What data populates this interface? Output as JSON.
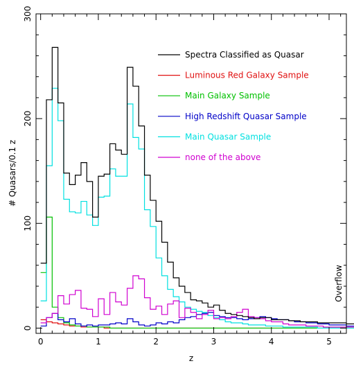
{
  "chart_data": {
    "type": "line",
    "title": "",
    "xlabel": "z",
    "ylabel": "# Quasars/0.1 z",
    "xlim": [
      -0.08,
      5.3
    ],
    "ylim": [
      -5,
      300
    ],
    "x_ticks": [
      0,
      1,
      2,
      3,
      4,
      5
    ],
    "y_ticks": [
      0,
      100,
      200,
      300
    ],
    "bin_width": 0.1,
    "bin_start": 0.0,
    "grid": false,
    "legend_position": "top-right",
    "annotations": [
      {
        "text": "Overflow",
        "orientation": "vertical",
        "position": "right"
      }
    ],
    "series": [
      {
        "name": "Spectra Classified as Quasar",
        "color": "#000000",
        "values": [
          62,
          218,
          268,
          215,
          148,
          137,
          146,
          158,
          140,
          106,
          145,
          147,
          176,
          170,
          166,
          249,
          231,
          193,
          146,
          122,
          102,
          82,
          63,
          48,
          40,
          34,
          27,
          26,
          24,
          20,
          22,
          17,
          14,
          13,
          12,
          11,
          10,
          9,
          10,
          10,
          8,
          8,
          8,
          7,
          7,
          6,
          6,
          6,
          5,
          5,
          5,
          5,
          5,
          4,
          4,
          4
        ]
      },
      {
        "name": "Luminous Red Galaxy Sample",
        "color": "#e01010",
        "values": [
          8,
          6,
          5,
          4,
          3,
          2,
          2,
          1,
          1,
          1,
          1,
          0,
          0,
          0,
          0,
          0,
          0,
          0,
          0,
          0,
          0,
          0,
          0,
          0,
          0,
          0,
          0,
          0,
          0,
          0,
          0,
          0,
          0,
          0,
          0,
          0,
          0,
          0,
          0,
          0,
          0,
          0,
          0,
          0,
          0,
          0,
          0,
          0,
          0,
          0,
          0,
          0,
          0,
          0,
          0,
          0
        ]
      },
      {
        "name": "Main Galaxy Sample",
        "color": "#00c000",
        "values": [
          53,
          106,
          20,
          10,
          5,
          3,
          2,
          2,
          1,
          1,
          1,
          1,
          0,
          0,
          0,
          0,
          0,
          0,
          0,
          0,
          0,
          0,
          0,
          0,
          0,
          0,
          0,
          0,
          0,
          0,
          0,
          0,
          0,
          0,
          0,
          0,
          0,
          0,
          0,
          0,
          0,
          0,
          0,
          0,
          0,
          0,
          0,
          0,
          0,
          0,
          0,
          0,
          0,
          0,
          0,
          0
        ]
      },
      {
        "name": "High Redshift Quasar Sample",
        "color": "#0000c8",
        "values": [
          2,
          10,
          14,
          8,
          6,
          9,
          4,
          2,
          3,
          2,
          3,
          3,
          4,
          5,
          4,
          9,
          6,
          3,
          2,
          3,
          5,
          4,
          6,
          5,
          8,
          10,
          11,
          13,
          14,
          15,
          12,
          11,
          10,
          10,
          9,
          8,
          9,
          10,
          11,
          10,
          9,
          8,
          8,
          7,
          6,
          6,
          5,
          5,
          4,
          4,
          3,
          3,
          3,
          2,
          2,
          2
        ]
      },
      {
        "name": "Main Quasar Sample",
        "color": "#00e0e0",
        "values": [
          26,
          155,
          229,
          198,
          123,
          111,
          110,
          121,
          108,
          98,
          125,
          126,
          152,
          145,
          145,
          214,
          182,
          171,
          113,
          97,
          67,
          50,
          37,
          30,
          25,
          20,
          18,
          16,
          15,
          12,
          10,
          8,
          6,
          5,
          5,
          4,
          3,
          3,
          3,
          2,
          2,
          2,
          1,
          1,
          1,
          1,
          1,
          1,
          0,
          0,
          0,
          0,
          0,
          0,
          0,
          0
        ]
      },
      {
        "name": "none of the above",
        "color": "#d000d0",
        "values": [
          5,
          10,
          14,
          31,
          23,
          32,
          36,
          19,
          18,
          11,
          28,
          13,
          34,
          25,
          22,
          38,
          50,
          47,
          29,
          18,
          21,
          13,
          23,
          26,
          10,
          19,
          15,
          9,
          13,
          17,
          9,
          10,
          9,
          11,
          15,
          18,
          11,
          10,
          9,
          7,
          6,
          6,
          4,
          3,
          3,
          3,
          2,
          2,
          2,
          1,
          1,
          1,
          1,
          1,
          1,
          1
        ]
      }
    ]
  }
}
